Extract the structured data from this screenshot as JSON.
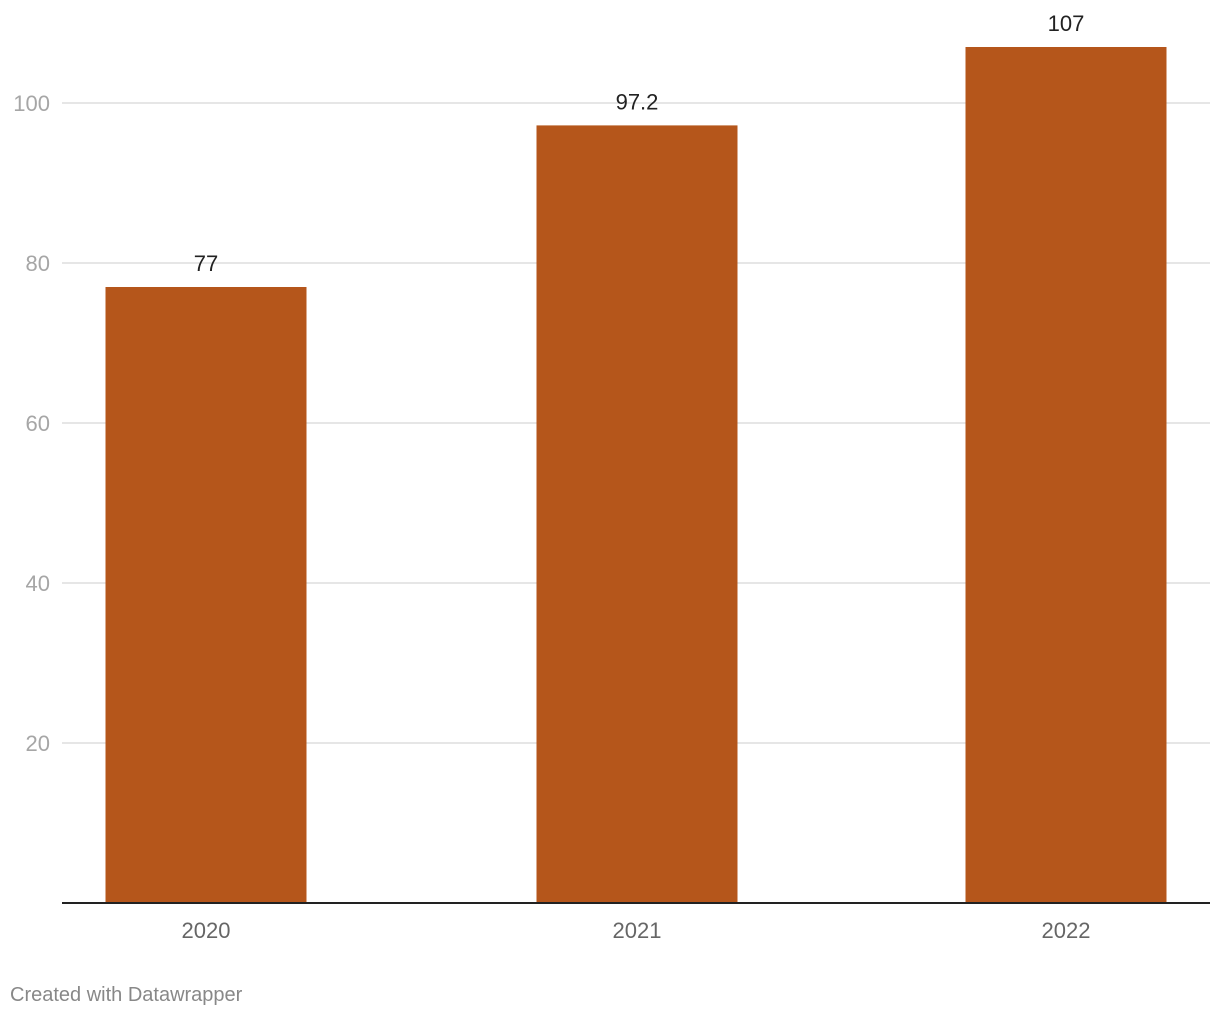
{
  "chart_data": {
    "type": "bar",
    "categories": [
      "2020",
      "2021",
      "2022"
    ],
    "values": [
      77,
      97.2,
      107
    ],
    "value_labels": [
      "77",
      "97.2",
      "107"
    ],
    "y_ticks": [
      20,
      40,
      60,
      80,
      100
    ],
    "ylim": [
      0,
      107
    ],
    "grid": true,
    "bar_color": "#b5561b",
    "title": "",
    "xlabel": "",
    "ylabel": ""
  },
  "footer": {
    "credit": "Created with Datawrapper"
  }
}
